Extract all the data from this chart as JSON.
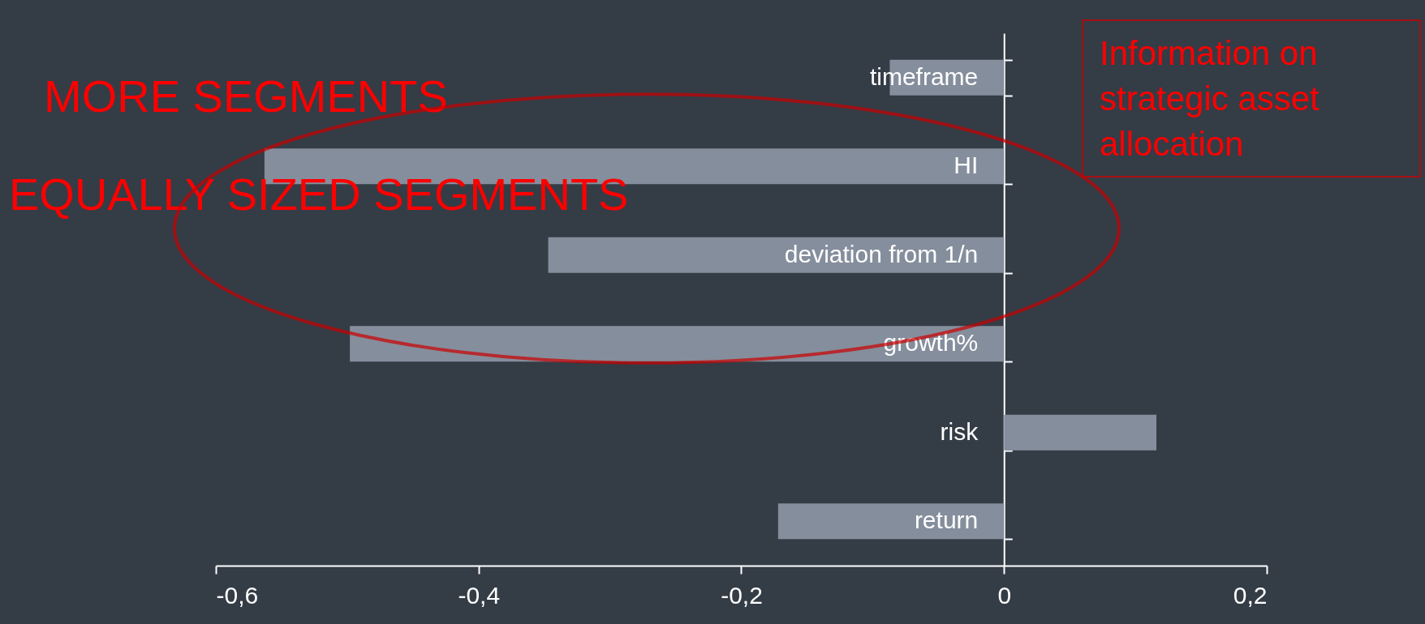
{
  "chart_data": {
    "type": "bar",
    "orientation": "horizontal",
    "categories": [
      "timeframe",
      "HI",
      "deviation from 1/n",
      "growth%",
      "risk",
      "return"
    ],
    "values": [
      -0.087,
      -0.563,
      -0.347,
      -0.498,
      0.116,
      -0.172
    ],
    "color": "#858e9c",
    "xlim": [
      -0.6,
      0.2
    ],
    "xticks": [
      {
        "value": -0.6,
        "label": "-0,6"
      },
      {
        "value": -0.4,
        "label": "-0,4"
      },
      {
        "value": -0.2,
        "label": "-0,2"
      },
      {
        "value": 0,
        "label": "0"
      },
      {
        "value": 0.2,
        "label": "0,2"
      }
    ],
    "grid": false,
    "annotations": [
      "MORE SEGMENTS",
      "EQUALLY SIZED SEGMENTS",
      "Information on strategic asset allocation"
    ]
  }
}
